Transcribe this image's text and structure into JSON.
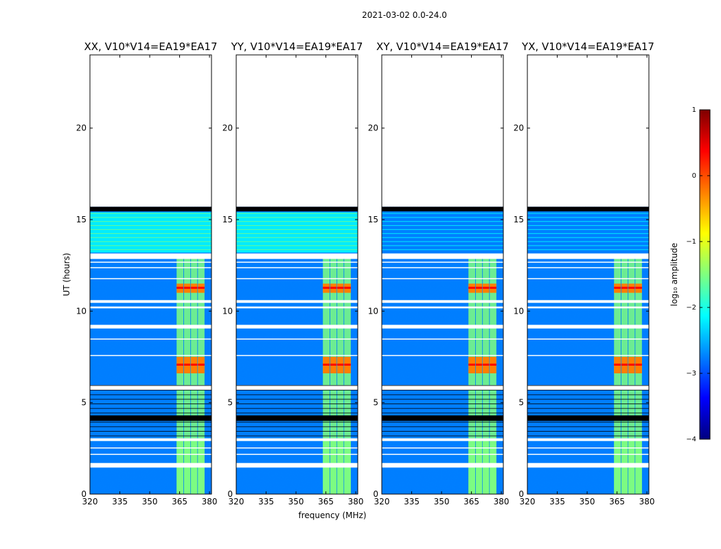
{
  "figure": {
    "suptitle": "2021-03-02 0.0-24.0",
    "ylabel": "UT (hours)",
    "xlabel": "frequency (MHz)"
  },
  "colorbar": {
    "label": "log₁₀ amplitude",
    "range": [
      -4,
      1
    ],
    "tick_labels": [
      "1",
      "0",
      "−1",
      "−2",
      "−3",
      "−4"
    ],
    "tick_values": [
      1,
      0,
      -1,
      -2,
      -3,
      -4
    ],
    "colormap": [
      "#00007f",
      "#0000ff",
      "#007fff",
      "#00ffff",
      "#7fff7f",
      "#ffff00",
      "#ff7f00",
      "#ff0000",
      "#7f0000"
    ]
  },
  "chart_data": [
    {
      "type": "heatmap",
      "title": "XX, V10*V14=EA19*EA17",
      "polarization": "XX",
      "xlim": [
        320,
        381
      ],
      "ylim": [
        0,
        24
      ],
      "xticks": [
        320,
        335,
        350,
        365,
        380
      ],
      "yticks": [
        0,
        5,
        10,
        15,
        20
      ],
      "data_end_hours": 15.7,
      "rfi_band_mhz": [
        363.5,
        377.5
      ],
      "hot_windows_hours": [
        [
          6.6,
          7.5
        ],
        [
          11.0,
          11.5
        ]
      ],
      "background_log10_amplitude": -3
    },
    {
      "type": "heatmap",
      "title": "YY, V10*V14=EA19*EA17",
      "polarization": "YY",
      "xlim": [
        320,
        381
      ],
      "ylim": [
        0,
        24
      ],
      "xticks": [
        320,
        335,
        350,
        365,
        380
      ],
      "yticks": [
        0,
        5,
        10,
        15,
        20
      ],
      "data_end_hours": 15.7,
      "rfi_band_mhz": [
        363.5,
        377.5
      ],
      "hot_windows_hours": [
        [
          6.6,
          7.5
        ],
        [
          11.0,
          11.5
        ]
      ],
      "background_log10_amplitude": -3
    },
    {
      "type": "heatmap",
      "title": "XY, V10*V14=EA19*EA17",
      "polarization": "XY",
      "xlim": [
        320,
        381
      ],
      "ylim": [
        0,
        24
      ],
      "xticks": [
        320,
        335,
        350,
        365,
        380
      ],
      "yticks": [
        0,
        5,
        10,
        15,
        20
      ],
      "data_end_hours": 15.7,
      "rfi_band_mhz": [
        363.5,
        377.5
      ],
      "hot_windows_hours": [
        [
          6.6,
          7.5
        ],
        [
          11.0,
          11.5
        ]
      ],
      "background_log10_amplitude": -3
    },
    {
      "type": "heatmap",
      "title": "YX, V10*V14=EA19*EA17",
      "polarization": "YX",
      "xlim": [
        320,
        381
      ],
      "ylim": [
        0,
        24
      ],
      "xticks": [
        320,
        335,
        350,
        365,
        380
      ],
      "yticks": [
        0,
        5,
        10,
        15,
        20
      ],
      "data_end_hours": 15.7,
      "rfi_band_mhz": [
        363.5,
        377.5
      ],
      "hot_windows_hours": [
        [
          6.6,
          7.5
        ],
        [
          11.0,
          11.5
        ]
      ],
      "background_log10_amplitude": -3
    }
  ]
}
